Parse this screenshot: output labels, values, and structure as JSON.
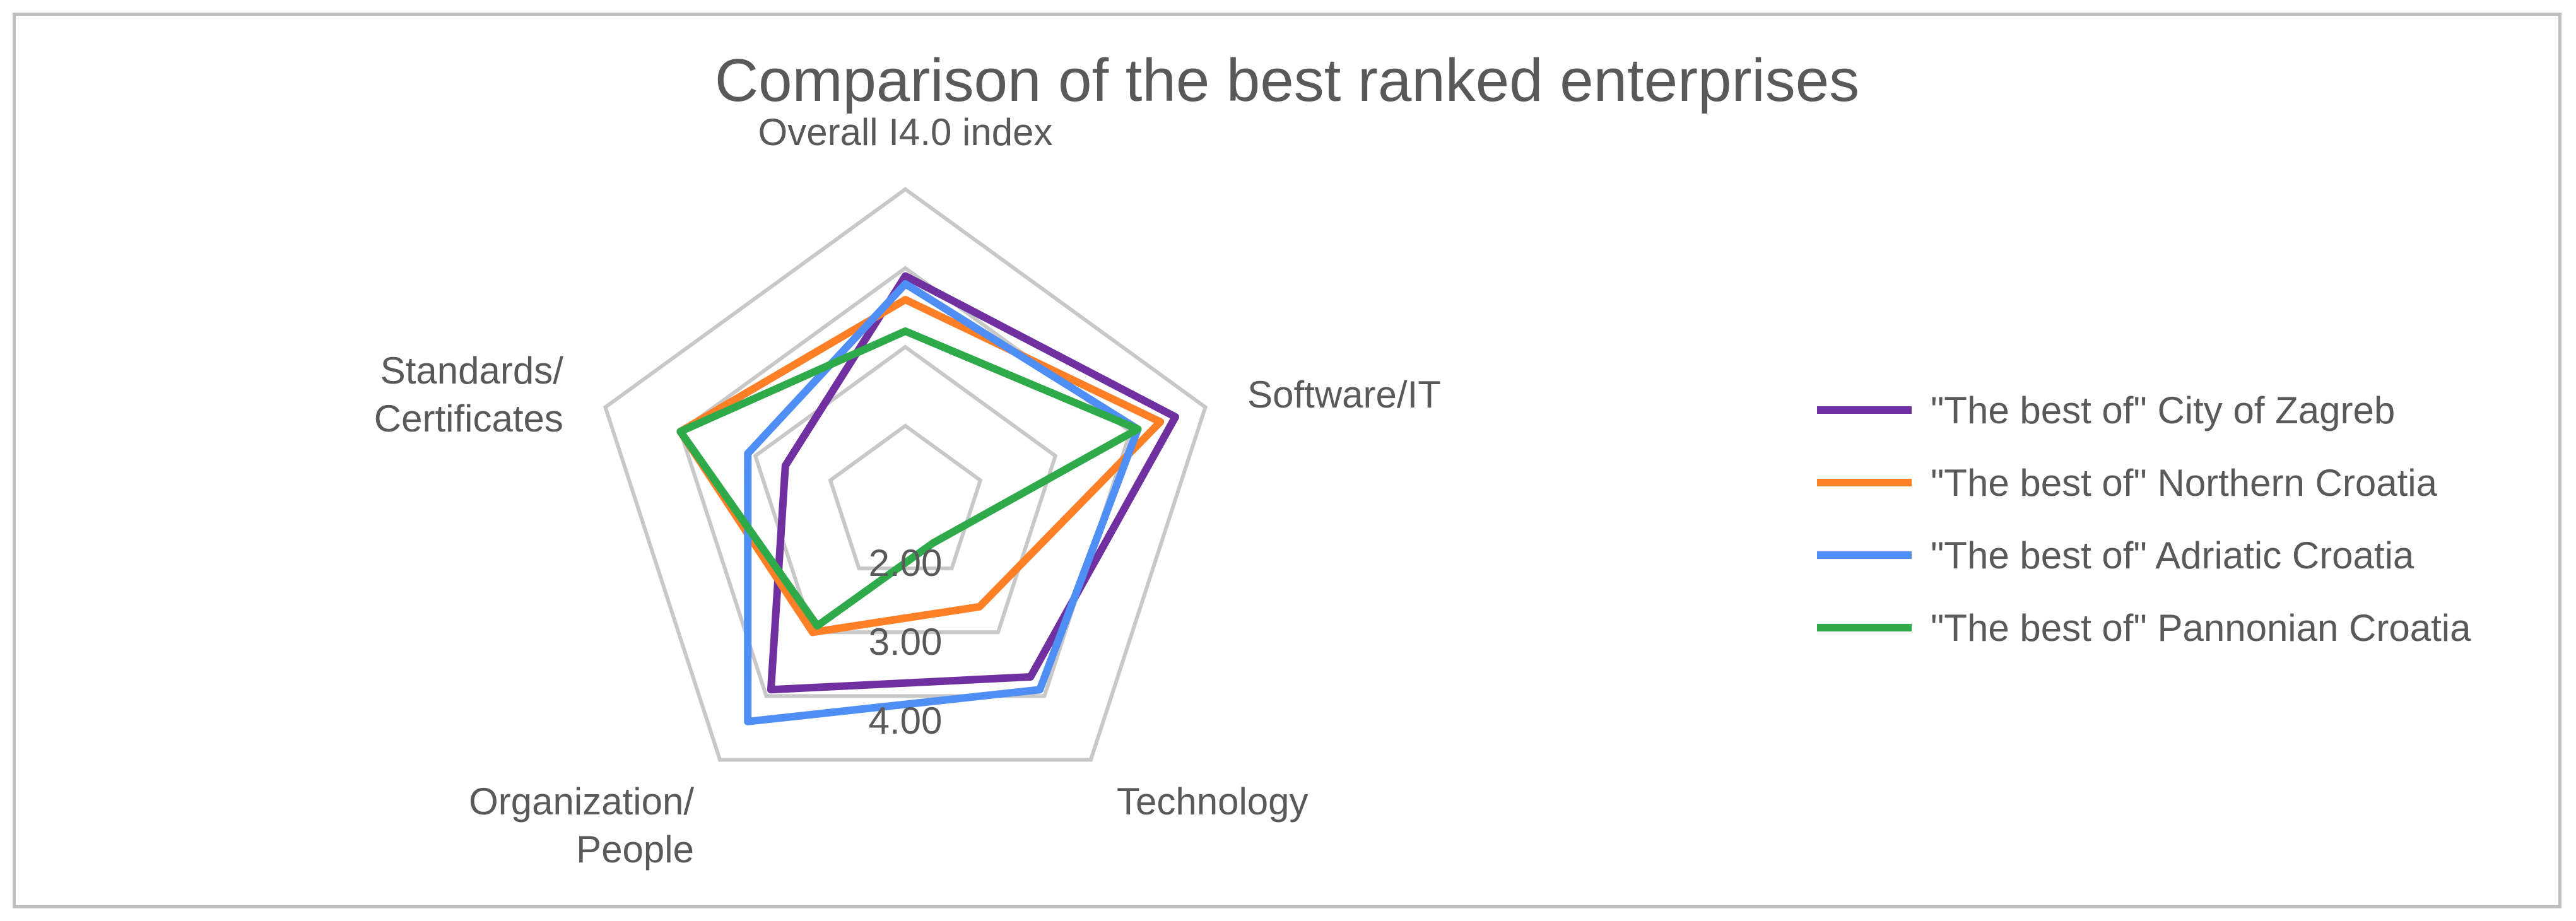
{
  "chart_data": {
    "type": "radar",
    "title": "Comparison of the best ranked enterprises",
    "axes": [
      [
        "Overall I4.0 index"
      ],
      [
        "Software/IT"
      ],
      [
        "Technology"
      ],
      [
        "Organization/",
        "People"
      ],
      [
        "Standards/",
        "Certificates"
      ]
    ],
    "rlim": [
      1,
      5
    ],
    "ticks": [
      1,
      2,
      3,
      4,
      5
    ],
    "tick_labels": [
      {
        "value": 2,
        "label": "2.00"
      },
      {
        "value": 3,
        "label": "3.00"
      },
      {
        "value": 4,
        "label": "4.00"
      }
    ],
    "series": [
      {
        "name": "\"The best of\" City of Zagreb",
        "color": "#7030a0",
        "values": [
          3.9,
          4.6,
          3.7,
          3.9,
          2.6
        ]
      },
      {
        "name": "\"The best of\" Northern Croatia",
        "color": "#ff7f27",
        "values": [
          3.6,
          4.4,
          2.6,
          3.0,
          4.0
        ]
      },
      {
        "name": "\"The best of\" Adriatic Croatia",
        "color": "#4f8ef5",
        "values": [
          3.8,
          4.1,
          3.9,
          4.4,
          3.1
        ]
      },
      {
        "name": "\"The best of\" Pannonian Croatia",
        "color": "#2eaa4a",
        "values": [
          3.2,
          4.1,
          1.6,
          2.9,
          4.0
        ]
      }
    ],
    "legend_position": "right"
  }
}
